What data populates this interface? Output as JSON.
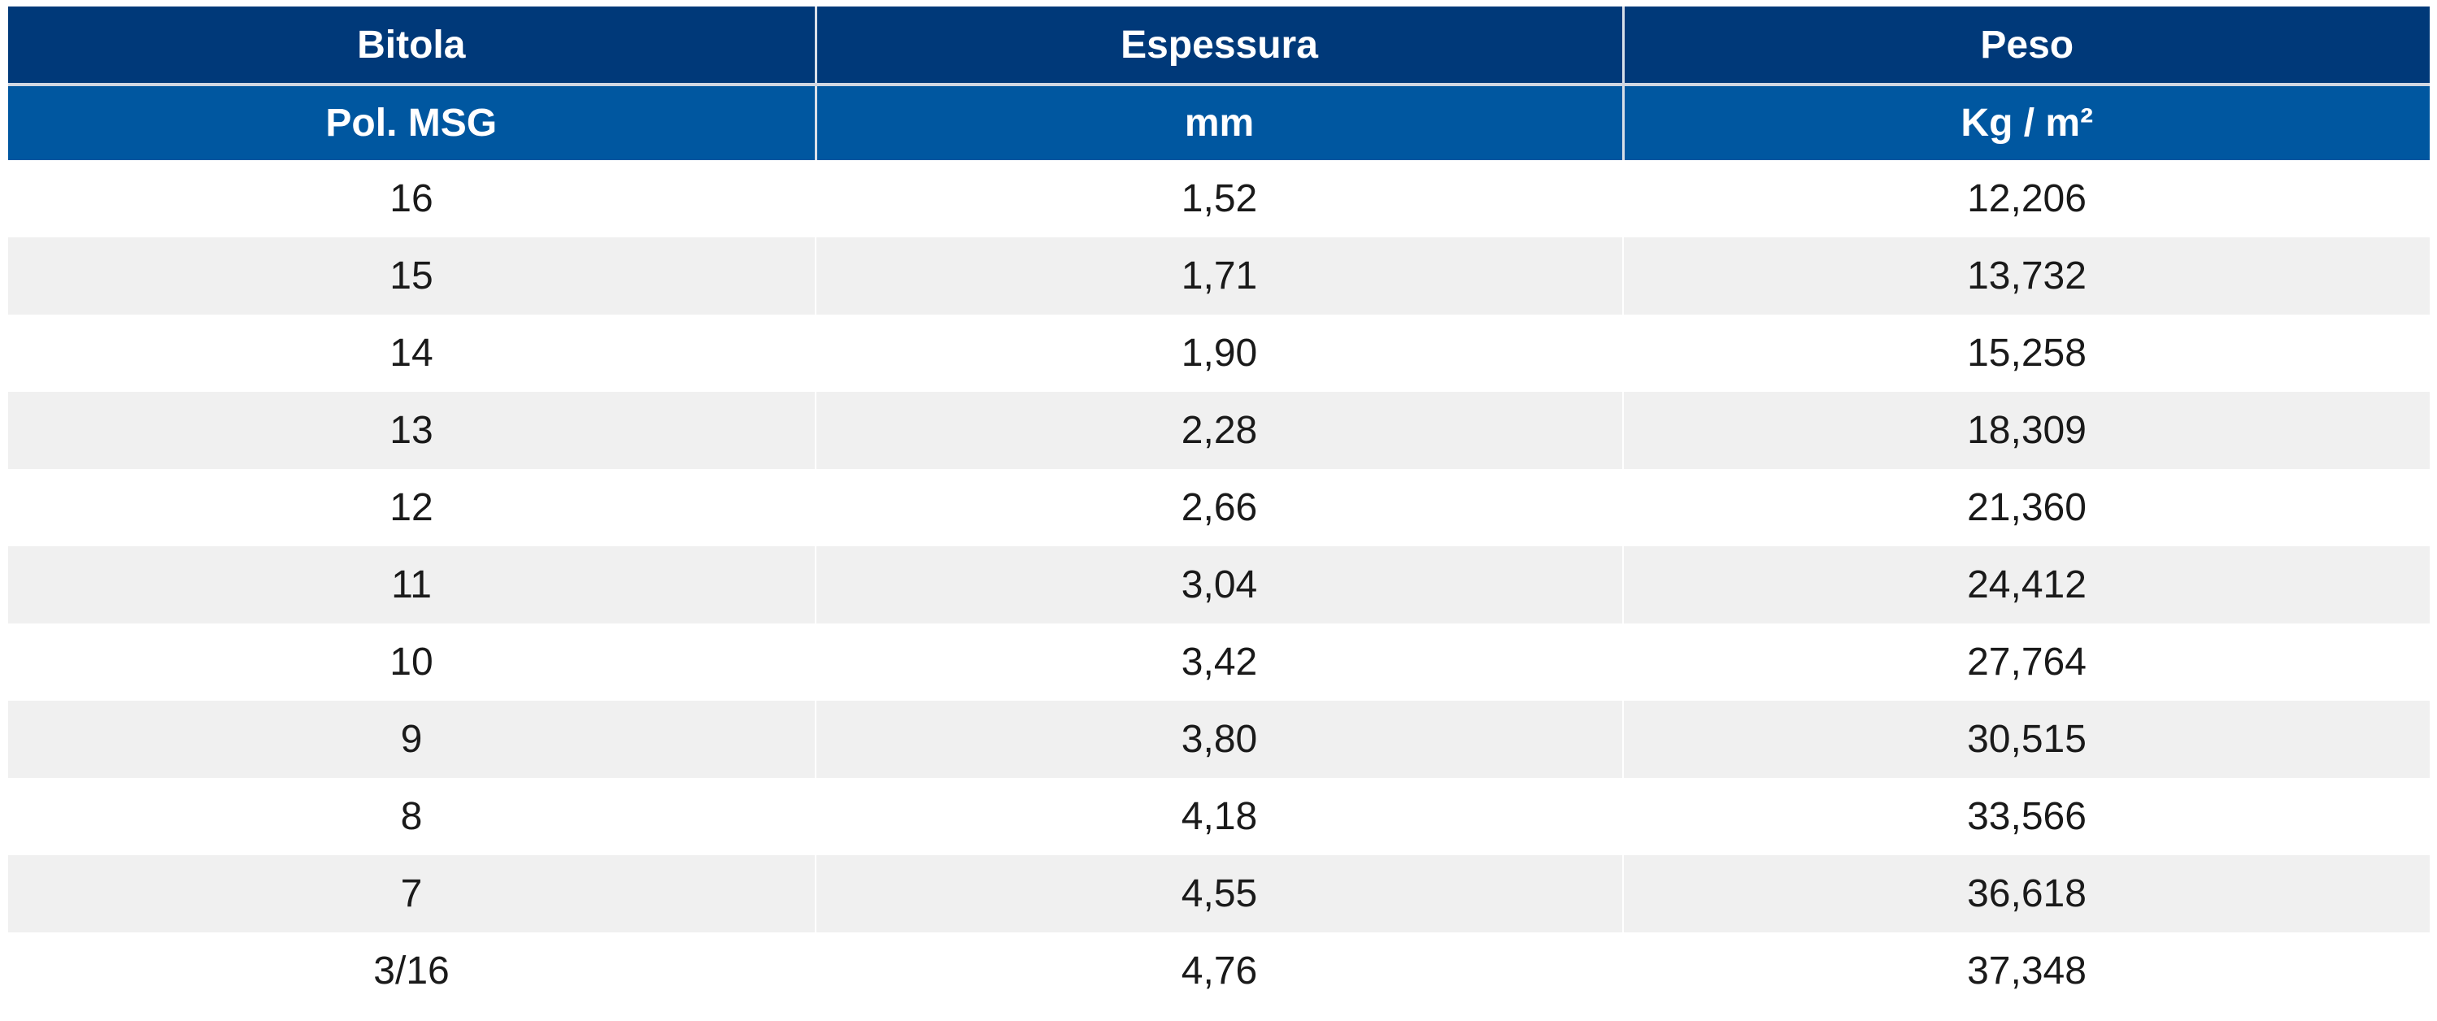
{
  "table": {
    "header_row1": [
      "Bitola",
      "Espessura",
      "Peso"
    ],
    "header_row2": [
      "Pol. MSG",
      "mm",
      "Kg / m²"
    ],
    "rows": [
      [
        "16",
        "1,52",
        "12,206"
      ],
      [
        "15",
        "1,71",
        "13,732"
      ],
      [
        "14",
        "1,90",
        "15,258"
      ],
      [
        "13",
        "2,28",
        "18,309"
      ],
      [
        "12",
        "2,66",
        "21,360"
      ],
      [
        "11",
        "3,04",
        "24,412"
      ],
      [
        "10",
        "3,42",
        "27,764"
      ],
      [
        "9",
        "3,80",
        "30,515"
      ],
      [
        "8",
        "4,18",
        "33,566"
      ],
      [
        "7",
        "4,55",
        "36,618"
      ],
      [
        "3/16",
        "4,76",
        "37,348"
      ]
    ]
  },
  "colors": {
    "header_top": "#003979",
    "header_sub": "#0057a0",
    "row_alt": "#f0f0f0",
    "row_base": "#ffffff"
  }
}
